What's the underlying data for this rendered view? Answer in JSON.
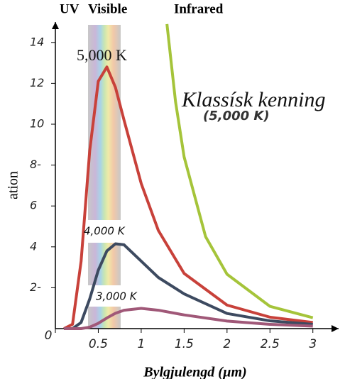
{
  "chart_data": {
    "type": "line",
    "band_labels": [
      "UV",
      "Visible",
      "Infrared"
    ],
    "annotation": "(5,000 K)",
    "ylabel": "EM Radiation Intensity",
    "xlabel": "Bylgjulengd (µm)",
    "series": [
      {
        "name": "5,000 K",
        "color": "#c8413a",
        "x": [
          0.1,
          0.2,
          0.3,
          0.4,
          0.5,
          0.6,
          0.7,
          0.8,
          1.0,
          1.2,
          1.5,
          2,
          2.5,
          3
        ],
        "values": [
          0,
          0.21,
          3.3,
          8.7,
          12.1,
          12.8,
          11.8,
          10.2,
          7.1,
          4.8,
          2.7,
          1.15,
          0.56,
          0.3
        ]
      },
      {
        "name": "4,000 K",
        "color": "#3d4a60",
        "x": [
          0.1,
          0.2,
          0.3,
          0.4,
          0.5,
          0.6,
          0.7,
          0.8,
          1.0,
          1.2,
          1.5,
          2,
          2.5,
          3
        ],
        "values": [
          0,
          0,
          0.3,
          1.45,
          2.86,
          3.8,
          4.15,
          4.1,
          3.3,
          2.5,
          1.7,
          0.74,
          0.38,
          0.21
        ]
      },
      {
        "name": "3,000 K",
        "color": "#a05878",
        "x": [
          0.1,
          0.3,
          0.4,
          0.5,
          0.6,
          0.7,
          0.8,
          1.0,
          1.2,
          1.5,
          2,
          2.5,
          3
        ],
        "values": [
          0,
          0,
          0.07,
          0.26,
          0.52,
          0.75,
          0.9,
          0.99,
          0.9,
          0.67,
          0.37,
          0.21,
          0.12
        ]
      },
      {
        "name": "Klassísk kenning",
        "color": "#a5c43a",
        "x": [
          1.3,
          1.4,
          1.5,
          1.75,
          2,
          2.5,
          3
        ],
        "values": [
          14.9,
          11.1,
          8.4,
          4.5,
          2.66,
          1.09,
          0.53
        ]
      }
    ],
    "xlim": [
      0,
      3.3
    ],
    "ylim": [
      0,
      15
    ],
    "xticks": [
      0,
      0.5,
      1,
      1.5,
      2,
      2.5,
      3
    ],
    "yticks": [
      {
        "value": 2,
        "label": "2-"
      },
      4,
      6,
      {
        "value": 8,
        "label": "8-"
      },
      10,
      12,
      14
    ]
  }
}
